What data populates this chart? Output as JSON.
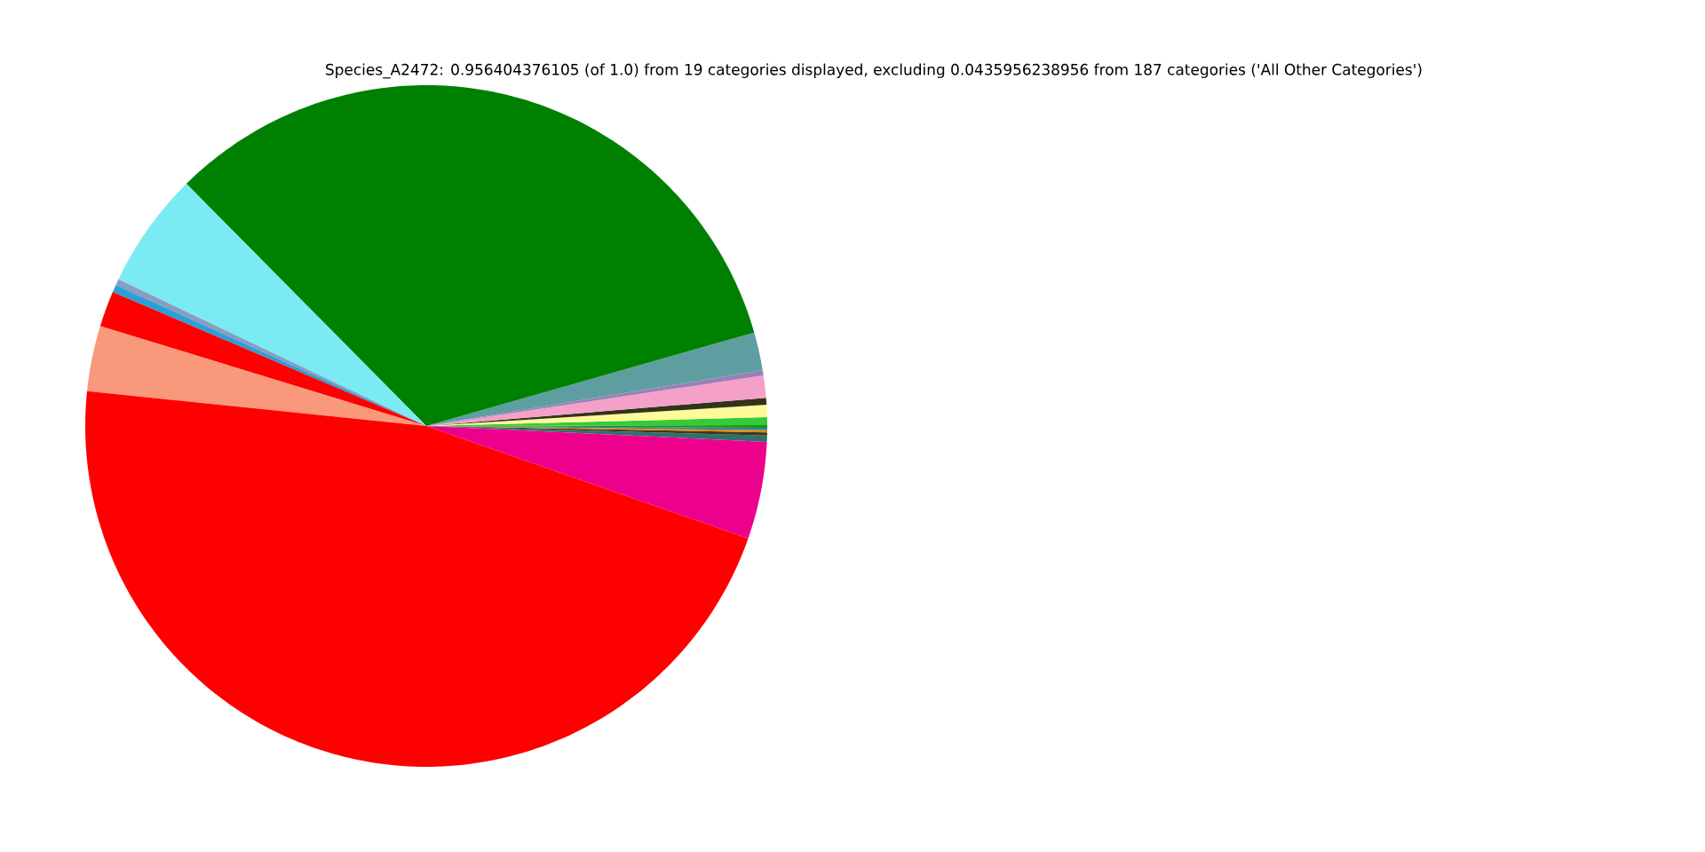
{
  "chart_data": {
    "type": "pie",
    "title": "Species_A2472: 0.956404376105 (of 1.0) from 19 categories displayed, excluding 0.0435956238956 from 187 categories ('All Other Categories')",
    "categories": [
      null,
      null,
      null,
      null,
      null,
      null,
      null,
      null,
      null,
      null,
      null,
      null,
      null,
      null,
      null,
      null,
      null,
      null,
      null
    ],
    "values": [
      0.3,
      0.15,
      0.1,
      0.12,
      0.12,
      0.37,
      0.58,
      0.33,
      1.05,
      0.25,
      1.8,
      33.0,
      5.5,
      0.3,
      0.35,
      1.7,
      3.1,
      46.28,
      4.6
    ],
    "colors": [
      "#2f6f6f",
      "#3a3a1a",
      "#ff7f00",
      "#1f8f8f",
      "#228b22",
      "#32cd32",
      "#fffa99",
      "#333319",
      "#f4a0c8",
      "#9a80b8",
      "#5f9ea0",
      "#008000",
      "#7aebf3",
      "#8a9cc0",
      "#2a9fd8",
      "#ff0000",
      "#f9987a",
      "#ff0000",
      "#ec008c"
    ]
  }
}
